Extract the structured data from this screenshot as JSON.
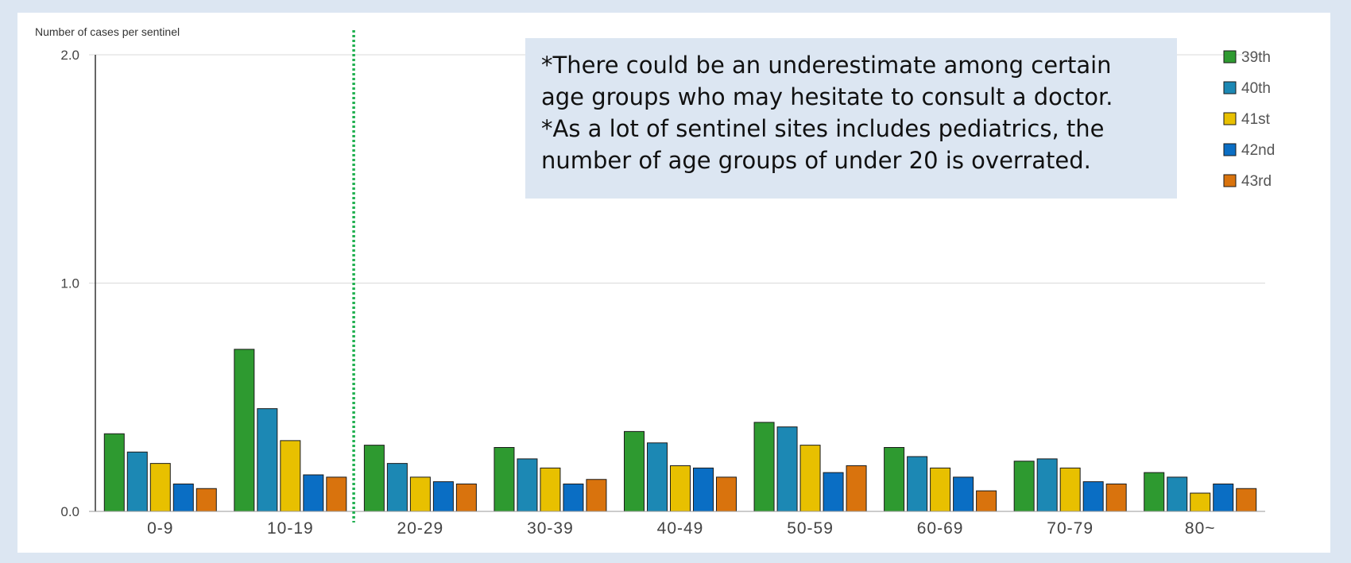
{
  "chart_data": {
    "type": "bar",
    "ylabel": "Number of cases per sentinel",
    "ylim": [
      0,
      2.0
    ],
    "yticks": [
      "0.0",
      "1.0",
      "2.0"
    ],
    "grid": true,
    "legend_position": "top-right",
    "categories": [
      "0-9",
      "10-19",
      "20-29",
      "30-39",
      "40-49",
      "50-59",
      "60-69",
      "70-79",
      "80~"
    ],
    "series": [
      {
        "name": "39th",
        "color": "#2e9a30",
        "values": [
          0.34,
          0.71,
          0.29,
          0.28,
          0.35,
          0.39,
          0.28,
          0.22,
          0.17
        ]
      },
      {
        "name": "40th",
        "color": "#1c88b4",
        "values": [
          0.26,
          0.45,
          0.21,
          0.23,
          0.3,
          0.37,
          0.24,
          0.23,
          0.15
        ]
      },
      {
        "name": "41st",
        "color": "#e8c000",
        "values": [
          0.21,
          0.31,
          0.15,
          0.19,
          0.2,
          0.29,
          0.19,
          0.19,
          0.08
        ]
      },
      {
        "name": "42nd",
        "color": "#0a6ec4",
        "values": [
          0.12,
          0.16,
          0.13,
          0.12,
          0.19,
          0.17,
          0.15,
          0.13,
          0.12
        ]
      },
      {
        "name": "43rd",
        "color": "#d9730d",
        "values": [
          0.1,
          0.15,
          0.12,
          0.14,
          0.15,
          0.2,
          0.09,
          0.12,
          0.1
        ]
      }
    ],
    "annotation_lines": [
      "*There could be an underestimate among certain",
      "age groups who may hesitate to consult a doctor.",
      "*As a lot of sentinel sites includes pediatrics, the",
      "number of age groups of under 20 is overrated."
    ]
  }
}
